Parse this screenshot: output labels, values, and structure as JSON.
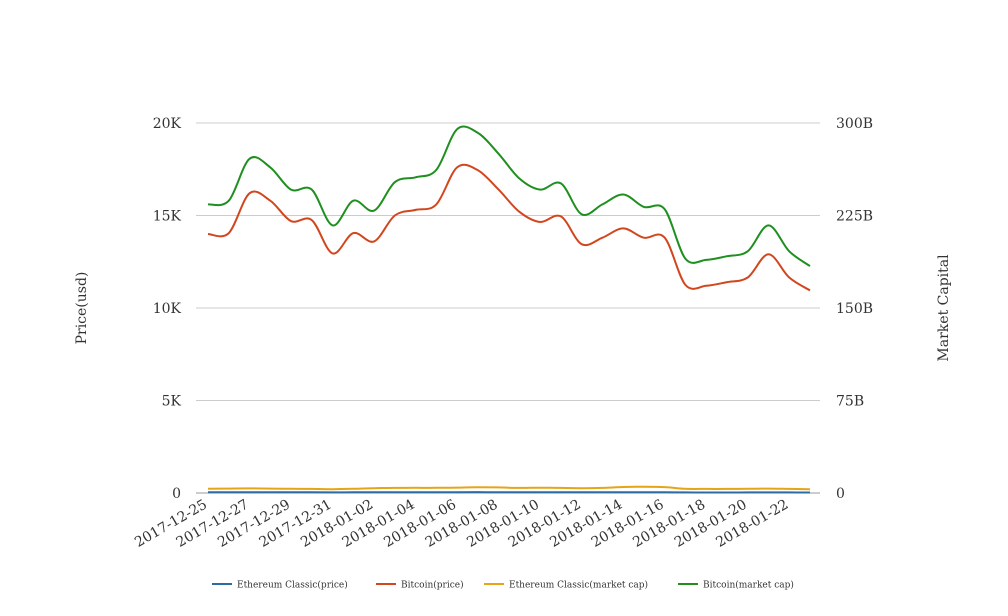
{
  "chart_data": {
    "type": "line",
    "title": "",
    "x": [
      "2017-12-25",
      "2017-12-26",
      "2017-12-27",
      "2017-12-28",
      "2017-12-29",
      "2017-12-30",
      "2017-12-31",
      "2018-01-01",
      "2018-01-02",
      "2018-01-03",
      "2018-01-04",
      "2018-01-05",
      "2018-01-06",
      "2018-01-07",
      "2018-01-08",
      "2018-01-09",
      "2018-01-10",
      "2018-01-11",
      "2018-01-12",
      "2018-01-13",
      "2018-01-14",
      "2018-01-15",
      "2018-01-16",
      "2018-01-17",
      "2018-01-18",
      "2018-01-19",
      "2018-01-20",
      "2018-01-21",
      "2018-01-22",
      "2018-01-23"
    ],
    "x_tick_labels": [
      "2017-12-25",
      "2017-12-27",
      "2017-12-29",
      "2017-12-31",
      "2018-01-02",
      "2018-01-04",
      "2018-01-06",
      "2018-01-08",
      "2018-01-10",
      "2018-01-12",
      "2018-01-14",
      "2018-01-16",
      "2018-01-18",
      "2018-01-20",
      "2018-01-22"
    ],
    "y_left": {
      "label": "Price(usd)",
      "range": [
        0,
        20000
      ],
      "ticks": [
        0,
        5000,
        10000,
        15000,
        20000
      ],
      "tick_labels": [
        "0",
        "5K",
        "10K",
        "15K",
        "20K"
      ]
    },
    "y_right": {
      "label": "Market Capital",
      "range": [
        0,
        300000000000
      ],
      "ticks": [
        0,
        75000000000,
        150000000000,
        225000000000,
        300000000000
      ],
      "tick_labels": [
        "0",
        "75B",
        "150B",
        "225B",
        "300B"
      ]
    },
    "grid": true,
    "legend_position": "bottom",
    "series": [
      {
        "name": "Ethereum Classic(price)",
        "axis": "left",
        "color": "#2b6ca3",
        "values": [
          36,
          38,
          42,
          40,
          38,
          36,
          34,
          36,
          40,
          42,
          44,
          42,
          44,
          46,
          42,
          40,
          40,
          38,
          36,
          38,
          42,
          44,
          40,
          30,
          28,
          28,
          30,
          32,
          30,
          28
        ]
      },
      {
        "name": "Bitcoin(price)",
        "axis": "left",
        "color": "#d2461e",
        "values": [
          14000,
          14050,
          16200,
          15800,
          14700,
          14750,
          12950,
          14050,
          13600,
          15000,
          15300,
          15600,
          17600,
          17450,
          16400,
          15200,
          14650,
          14950,
          13450,
          13800,
          14300,
          13800,
          13800,
          11250,
          11200,
          11400,
          11650,
          12900,
          11650,
          10950
        ]
      },
      {
        "name": "Ethereum Classic(market cap)",
        "axis": "right",
        "color": "#e8a317",
        "values": [
          3500000000,
          3600000000,
          3700000000,
          3600000000,
          3400000000,
          3300000000,
          3100000000,
          3400000000,
          3900000000,
          4100000000,
          4200000000,
          4200000000,
          4400000000,
          4600000000,
          4500000000,
          4100000000,
          4300000000,
          4100000000,
          3900000000,
          4100000000,
          4900000000,
          5100000000,
          4800000000,
          3400000000,
          3300000000,
          3300000000,
          3400000000,
          3600000000,
          3300000000,
          3100000000
        ]
      },
      {
        "name": "Bitcoin(market cap)",
        "axis": "right",
        "color": "#1f8f1f",
        "values": [
          234000000000,
          237000000000,
          271000000000,
          264000000000,
          246000000000,
          246000000000,
          217000000000,
          237000000000,
          229000000000,
          252000000000,
          256000000000,
          262000000000,
          295000000000,
          292000000000,
          275000000000,
          255000000000,
          246000000000,
          251000000000,
          226000000000,
          234000000000,
          242000000000,
          232000000000,
          230000000000,
          190000000000,
          189000000000,
          192000000000,
          196000000000,
          217000000000,
          196000000000,
          184000000000
        ]
      }
    ]
  }
}
